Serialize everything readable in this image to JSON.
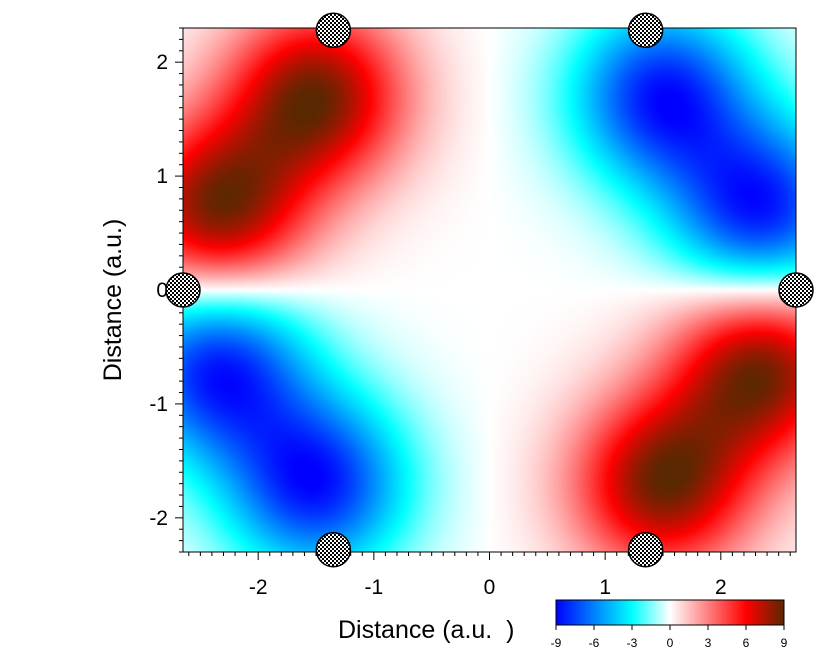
{
  "chart_data": {
    "type": "heatmap",
    "title": "",
    "xlabel": "Distance (a.u.  )",
    "ylabel": "Distance (a.u.)",
    "xlim": [
      -2.65,
      2.65
    ],
    "ylim": [
      -2.3,
      2.3
    ],
    "x_ticks": [
      -2,
      -1,
      0,
      1,
      2
    ],
    "y_ticks": [
      -2,
      -1,
      0,
      1,
      2
    ],
    "x_tick_labels": [
      "-2",
      "-1",
      "0",
      "1",
      "2"
    ],
    "y_tick_labels": [
      "-2",
      "-1",
      "0",
      "1",
      "2"
    ],
    "colorbar": {
      "range": [
        -9,
        9
      ],
      "ticks": [
        -9,
        -6,
        -3,
        0,
        3,
        6,
        9
      ],
      "tick_labels": [
        "-9",
        "-6",
        "-3",
        "0",
        "3",
        "6",
        "9"
      ],
      "placement": "bottom-right",
      "colors": [
        "#0000ff",
        "#0080ff",
        "#00ffff",
        "#ffffff",
        "#ff8080",
        "#ff0000",
        "#5a2800"
      ]
    },
    "extrema": [
      {
        "x": -1.5,
        "y": 1.7,
        "value": 9
      },
      {
        "x": -2.35,
        "y": 0.7,
        "value": 9
      },
      {
        "x": 1.5,
        "y": -1.7,
        "value": 9
      },
      {
        "x": 2.35,
        "y": -0.7,
        "value": 9
      },
      {
        "x": 1.5,
        "y": 1.7,
        "value": -9
      },
      {
        "x": 2.35,
        "y": 0.7,
        "value": -9
      },
      {
        "x": -1.5,
        "y": -1.7,
        "value": -9
      },
      {
        "x": -2.35,
        "y": -0.7,
        "value": -9
      }
    ],
    "nuclei": [
      {
        "x": -1.35,
        "y": 2.28
      },
      {
        "x": 1.35,
        "y": 2.28
      },
      {
        "x": -2.65,
        "y": 0
      },
      {
        "x": 2.65,
        "y": 0
      },
      {
        "x": -1.35,
        "y": -2.28
      },
      {
        "x": 1.35,
        "y": -2.28
      }
    ],
    "grid": false
  }
}
